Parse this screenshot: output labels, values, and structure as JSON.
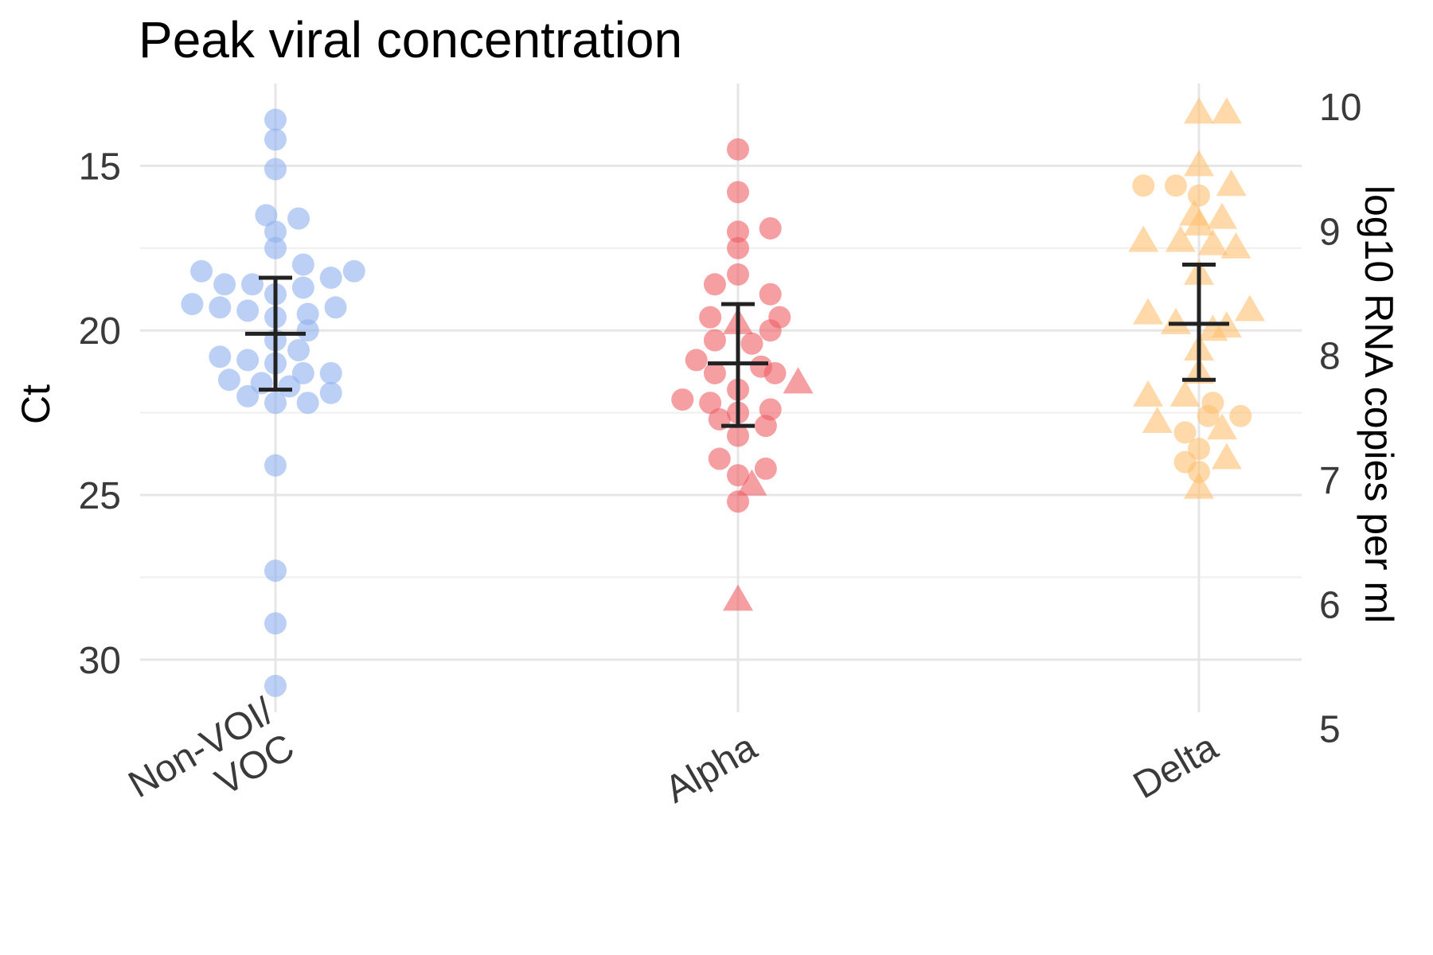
{
  "chart_data": {
    "type": "scatter",
    "title": "Peak viral concentration",
    "ylabel_left": "Ct",
    "ylabel_right": "log10 RNA copies per ml",
    "ylim_left": [
      12.5,
      31.6
    ],
    "y_reversed": true,
    "left_ticks": [
      "15",
      "20",
      "25",
      "30"
    ],
    "right_ticks": [
      "10",
      "9",
      "8",
      "7",
      "6",
      "5"
    ],
    "right_tick_values": [
      10,
      9,
      8,
      7,
      6,
      5
    ],
    "right_axis_mapping": {
      "ct_at_10": 13.2,
      "ct_per_log": 3.78
    },
    "categories": [
      "Non-VOI/\nVOC",
      "Alpha",
      "Delta"
    ],
    "colors": {
      "Non-VOI/VOC": "#8fb0f0",
      "Alpha": "#ee5f66",
      "Delta": "#ffc070"
    },
    "point_opacity": 0.6,
    "grid": true,
    "series": [
      {
        "category": "Non-VOI/VOC",
        "mean_ct": 20.1,
        "ci": [
          18.4,
          21.8
        ],
        "points": [
          {
            "dx": 0,
            "y": 13.6,
            "shape": "circle"
          },
          {
            "dx": 0,
            "y": 14.2,
            "shape": "circle"
          },
          {
            "dx": 0,
            "y": 15.1,
            "shape": "circle"
          },
          {
            "dx": -0.02,
            "y": 16.5,
            "shape": "circle"
          },
          {
            "dx": 0.05,
            "y": 16.6,
            "shape": "circle"
          },
          {
            "dx": 0,
            "y": 17.0,
            "shape": "circle"
          },
          {
            "dx": 0,
            "y": 17.5,
            "shape": "circle"
          },
          {
            "dx": -0.16,
            "y": 18.2,
            "shape": "circle"
          },
          {
            "dx": 0.17,
            "y": 18.2,
            "shape": "circle"
          },
          {
            "dx": 0.06,
            "y": 18.0,
            "shape": "circle"
          },
          {
            "dx": -0.11,
            "y": 18.6,
            "shape": "circle"
          },
          {
            "dx": -0.05,
            "y": 18.6,
            "shape": "circle"
          },
          {
            "dx": 0.12,
            "y": 18.4,
            "shape": "circle"
          },
          {
            "dx": 0.06,
            "y": 18.7,
            "shape": "circle"
          },
          {
            "dx": 0,
            "y": 18.9,
            "shape": "circle"
          },
          {
            "dx": -0.18,
            "y": 19.2,
            "shape": "circle"
          },
          {
            "dx": -0.12,
            "y": 19.3,
            "shape": "circle"
          },
          {
            "dx": 0.13,
            "y": 19.3,
            "shape": "circle"
          },
          {
            "dx": -0.06,
            "y": 19.4,
            "shape": "circle"
          },
          {
            "dx": 0.07,
            "y": 19.5,
            "shape": "circle"
          },
          {
            "dx": 0,
            "y": 19.6,
            "shape": "circle"
          },
          {
            "dx": 0.07,
            "y": 20.0,
            "shape": "circle"
          },
          {
            "dx": 0,
            "y": 20.3,
            "shape": "circle"
          },
          {
            "dx": 0.05,
            "y": 20.6,
            "shape": "circle"
          },
          {
            "dx": -0.12,
            "y": 20.8,
            "shape": "circle"
          },
          {
            "dx": -0.06,
            "y": 20.9,
            "shape": "circle"
          },
          {
            "dx": 0,
            "y": 21.0,
            "shape": "circle"
          },
          {
            "dx": 0.06,
            "y": 21.3,
            "shape": "circle"
          },
          {
            "dx": 0.12,
            "y": 21.3,
            "shape": "circle"
          },
          {
            "dx": -0.1,
            "y": 21.5,
            "shape": "circle"
          },
          {
            "dx": -0.03,
            "y": 21.6,
            "shape": "circle"
          },
          {
            "dx": 0.03,
            "y": 21.7,
            "shape": "circle"
          },
          {
            "dx": -0.06,
            "y": 22.0,
            "shape": "circle"
          },
          {
            "dx": 0.12,
            "y": 21.9,
            "shape": "circle"
          },
          {
            "dx": 0,
            "y": 22.2,
            "shape": "circle"
          },
          {
            "dx": 0.07,
            "y": 22.2,
            "shape": "circle"
          },
          {
            "dx": 0,
            "y": 24.1,
            "shape": "circle"
          },
          {
            "dx": 0,
            "y": 27.3,
            "shape": "circle"
          },
          {
            "dx": 0,
            "y": 28.9,
            "shape": "circle"
          },
          {
            "dx": 0,
            "y": 30.8,
            "shape": "circle"
          }
        ]
      },
      {
        "category": "Alpha",
        "mean_ct": 21.0,
        "ci": [
          19.2,
          22.9
        ],
        "points": [
          {
            "dx": 0,
            "y": 14.5,
            "shape": "circle"
          },
          {
            "dx": 0,
            "y": 15.8,
            "shape": "circle"
          },
          {
            "dx": 0,
            "y": 17.0,
            "shape": "circle"
          },
          {
            "dx": 0.07,
            "y": 16.9,
            "shape": "circle"
          },
          {
            "dx": 0,
            "y": 17.5,
            "shape": "circle"
          },
          {
            "dx": 0,
            "y": 18.3,
            "shape": "circle"
          },
          {
            "dx": -0.05,
            "y": 18.6,
            "shape": "circle"
          },
          {
            "dx": 0.07,
            "y": 18.9,
            "shape": "circle"
          },
          {
            "dx": 0.09,
            "y": 19.6,
            "shape": "circle"
          },
          {
            "dx": -0.06,
            "y": 19.6,
            "shape": "circle"
          },
          {
            "dx": 0,
            "y": 19.8,
            "shape": "triangle"
          },
          {
            "dx": 0.07,
            "y": 20.0,
            "shape": "circle"
          },
          {
            "dx": -0.05,
            "y": 20.3,
            "shape": "circle"
          },
          {
            "dx": 0.03,
            "y": 20.4,
            "shape": "circle"
          },
          {
            "dx": -0.09,
            "y": 20.9,
            "shape": "circle"
          },
          {
            "dx": 0.05,
            "y": 21.1,
            "shape": "circle"
          },
          {
            "dx": -0.05,
            "y": 21.3,
            "shape": "circle"
          },
          {
            "dx": 0.08,
            "y": 21.3,
            "shape": "circle"
          },
          {
            "dx": 0.13,
            "y": 21.6,
            "shape": "triangle"
          },
          {
            "dx": 0,
            "y": 21.8,
            "shape": "circle"
          },
          {
            "dx": -0.12,
            "y": 22.1,
            "shape": "circle"
          },
          {
            "dx": -0.06,
            "y": 22.2,
            "shape": "circle"
          },
          {
            "dx": 0.07,
            "y": 22.4,
            "shape": "circle"
          },
          {
            "dx": 0,
            "y": 22.5,
            "shape": "circle"
          },
          {
            "dx": -0.04,
            "y": 22.7,
            "shape": "circle"
          },
          {
            "dx": 0.06,
            "y": 22.9,
            "shape": "circle"
          },
          {
            "dx": 0,
            "y": 23.2,
            "shape": "circle"
          },
          {
            "dx": -0.04,
            "y": 23.9,
            "shape": "circle"
          },
          {
            "dx": 0.06,
            "y": 24.2,
            "shape": "circle"
          },
          {
            "dx": 0,
            "y": 24.4,
            "shape": "circle"
          },
          {
            "dx": 0.03,
            "y": 24.7,
            "shape": "triangle"
          },
          {
            "dx": 0,
            "y": 25.2,
            "shape": "circle"
          },
          {
            "dx": 0,
            "y": 28.2,
            "shape": "triangle"
          }
        ]
      },
      {
        "category": "Delta",
        "mean_ct": 19.8,
        "ci": [
          18.0,
          21.5
        ],
        "points": [
          {
            "dx": 0,
            "y": 13.4,
            "shape": "triangle"
          },
          {
            "dx": 0.06,
            "y": 13.4,
            "shape": "triangle"
          },
          {
            "dx": 0,
            "y": 15.0,
            "shape": "triangle"
          },
          {
            "dx": -0.12,
            "y": 15.6,
            "shape": "circle"
          },
          {
            "dx": -0.05,
            "y": 15.6,
            "shape": "circle"
          },
          {
            "dx": 0.07,
            "y": 15.6,
            "shape": "triangle"
          },
          {
            "dx": 0,
            "y": 15.9,
            "shape": "circle"
          },
          {
            "dx": -0.01,
            "y": 16.5,
            "shape": "triangle"
          },
          {
            "dx": 0.05,
            "y": 16.6,
            "shape": "triangle"
          },
          {
            "dx": 0,
            "y": 16.8,
            "shape": "triangle"
          },
          {
            "dx": -0.12,
            "y": 17.3,
            "shape": "triangle"
          },
          {
            "dx": -0.04,
            "y": 17.3,
            "shape": "triangle"
          },
          {
            "dx": 0.03,
            "y": 17.4,
            "shape": "triangle"
          },
          {
            "dx": 0.08,
            "y": 17.5,
            "shape": "triangle"
          },
          {
            "dx": 0,
            "y": 18.3,
            "shape": "triangle"
          },
          {
            "dx": -0.11,
            "y": 19.5,
            "shape": "triangle"
          },
          {
            "dx": 0.11,
            "y": 19.4,
            "shape": "triangle"
          },
          {
            "dx": -0.05,
            "y": 19.8,
            "shape": "triangle"
          },
          {
            "dx": 0.03,
            "y": 20.0,
            "shape": "triangle"
          },
          {
            "dx": 0.06,
            "y": 19.9,
            "shape": "triangle"
          },
          {
            "dx": 0,
            "y": 20.6,
            "shape": "triangle"
          },
          {
            "dx": 0,
            "y": 21.3,
            "shape": "triangle"
          },
          {
            "dx": -0.11,
            "y": 22.0,
            "shape": "triangle"
          },
          {
            "dx": -0.03,
            "y": 22.0,
            "shape": "triangle"
          },
          {
            "dx": 0.03,
            "y": 22.2,
            "shape": "circle"
          },
          {
            "dx": 0.09,
            "y": 22.6,
            "shape": "circle"
          },
          {
            "dx": -0.09,
            "y": 22.8,
            "shape": "triangle"
          },
          {
            "dx": 0.02,
            "y": 22.6,
            "shape": "circle"
          },
          {
            "dx": -0.03,
            "y": 23.1,
            "shape": "circle"
          },
          {
            "dx": 0.05,
            "y": 23.0,
            "shape": "triangle"
          },
          {
            "dx": 0,
            "y": 23.6,
            "shape": "circle"
          },
          {
            "dx": -0.03,
            "y": 24.0,
            "shape": "circle"
          },
          {
            "dx": 0.06,
            "y": 23.9,
            "shape": "triangle"
          },
          {
            "dx": 0,
            "y": 24.3,
            "shape": "circle"
          },
          {
            "dx": 0,
            "y": 24.8,
            "shape": "triangle"
          }
        ]
      }
    ]
  }
}
